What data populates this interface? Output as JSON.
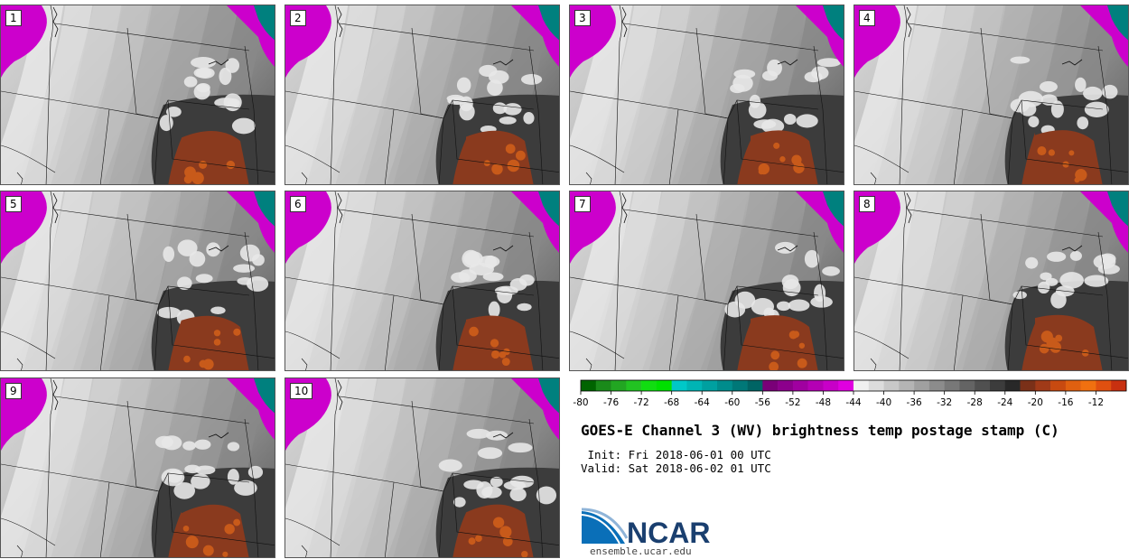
{
  "panels": [
    {
      "label": "1"
    },
    {
      "label": "2"
    },
    {
      "label": "3"
    },
    {
      "label": "4"
    },
    {
      "label": "5"
    },
    {
      "label": "6"
    },
    {
      "label": "7"
    },
    {
      "label": "8"
    },
    {
      "label": "9"
    },
    {
      "label": "10"
    }
  ],
  "colorbar": {
    "ticks": [
      "-80",
      "-76",
      "-72",
      "-68",
      "-64",
      "-60",
      "-56",
      "-52",
      "-48",
      "-44",
      "-40",
      "-36",
      "-32",
      "-28",
      "-24",
      "-20",
      "-16",
      "-12"
    ],
    "colors": [
      "#006400",
      "#1a8a1a",
      "#22a622",
      "#22c322",
      "#11dd11",
      "#00e000",
      "#00c8c8",
      "#00b4b4",
      "#00a0a0",
      "#008c8c",
      "#007878",
      "#006464",
      "#7a0078",
      "#8c008c",
      "#a000a0",
      "#b400b4",
      "#c800c8",
      "#e000e0",
      "#f0f0f0",
      "#dcdcdc",
      "#c8c8c8",
      "#b4b4b4",
      "#a0a0a0",
      "#8c8c8c",
      "#787878",
      "#646464",
      "#505050",
      "#3c3c3c",
      "#282828",
      "#7a3018",
      "#a03a18",
      "#c84a10",
      "#e06010",
      "#f07010",
      "#e05010",
      "#c83010"
    ]
  },
  "title": "GOES-E Channel 3 (WV) brightness temp postage stamp (C)",
  "init": " Init: Fri 2018-06-01 00 UTC",
  "valid": "Valid: Sat 2018-06-02 01 UTC",
  "logo": {
    "text": "NCAR",
    "color": "#1a3f6f"
  },
  "website": "ensemble.ucar.edu"
}
